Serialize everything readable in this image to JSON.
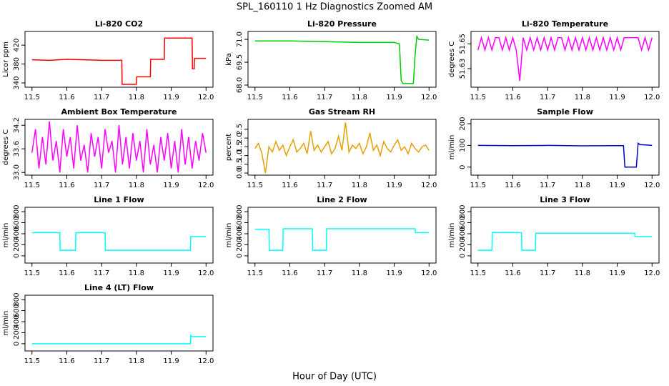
{
  "title": "SPL_160110  1 Hz Diagnostics Zoomed AM",
  "xlabel": "Hour of Day (UTC)",
  "chart_data": [
    {
      "type": "line",
      "title": "Li-820 CO2",
      "ylabel": "Licor ppm",
      "x": [
        11.5,
        11.55,
        11.6,
        11.65,
        11.7,
        11.758,
        11.759,
        11.8,
        11.801,
        11.84,
        11.841,
        11.88,
        11.881,
        11.96,
        11.961,
        11.966,
        11.967,
        12.0
      ],
      "series": [
        {
          "color": "#ff0000",
          "values": [
            389,
            388,
            390,
            389,
            388,
            388,
            337,
            337,
            353,
            353,
            390,
            390,
            435,
            435,
            370,
            370,
            392,
            392
          ]
        }
      ],
      "xlim": [
        11.48,
        12.02
      ],
      "xticks": [
        11.5,
        11.6,
        11.7,
        11.8,
        11.9,
        {
          "value": 12.0,
          "label": "12.0"
        }
      ],
      "ylim": [
        331,
        449
      ],
      "yticks": [
        340,
        380,
        420
      ]
    },
    {
      "type": "line",
      "title": "Li-820 Pressure",
      "ylabel": "kPa",
      "x": [
        11.5,
        11.6,
        11.7,
        11.8,
        11.9,
        11.915,
        11.92,
        11.925,
        11.955,
        11.96,
        11.965,
        11.97,
        12.0
      ],
      "series": [
        {
          "color": "#00cc00",
          "values": [
            70.9,
            70.9,
            70.85,
            70.8,
            70.8,
            70.7,
            68.3,
            68.1,
            68.1,
            70.0,
            71.2,
            71.0,
            70.95
          ]
        }
      ],
      "xlim": [
        11.48,
        12.02
      ],
      "xticks": [
        11.5,
        11.6,
        11.7,
        11.8,
        11.9,
        {
          "value": 12.0,
          "label": "12.0"
        }
      ],
      "ylim": [
        67.86,
        71.52
      ],
      "yticks": [
        {
          "value": 68.0,
          "label": "68.0"
        },
        69.5,
        {
          "value": 71.0,
          "label": "71.0"
        }
      ]
    },
    {
      "type": "line",
      "title": "Li-820 Temperature",
      "ylabel": "degrees C",
      "x": [
        11.5,
        11.51,
        11.52,
        11.53,
        11.54,
        11.55,
        11.56,
        11.57,
        11.58,
        11.59,
        11.6,
        11.61,
        11.62,
        11.63,
        11.64,
        11.65,
        11.66,
        11.67,
        11.68,
        11.69,
        11.7,
        11.71,
        11.72,
        11.73,
        11.74,
        11.75,
        11.76,
        11.77,
        11.78,
        11.79,
        11.8,
        11.81,
        11.82,
        11.83,
        11.84,
        11.85,
        11.86,
        11.87,
        11.88,
        11.89,
        11.9,
        11.91,
        11.92,
        11.93,
        11.94,
        11.95,
        11.96,
        11.97,
        11.98,
        11.99,
        12.0
      ],
      "series": [
        {
          "color": "#ff00ff",
          "values": [
            51.645,
            51.655,
            51.645,
            51.655,
            51.645,
            51.655,
            51.655,
            51.645,
            51.655,
            51.645,
            51.655,
            51.645,
            51.62,
            51.655,
            51.645,
            51.655,
            51.645,
            51.655,
            51.645,
            51.655,
            51.645,
            51.655,
            51.645,
            51.655,
            51.655,
            51.645,
            51.655,
            51.645,
            51.655,
            51.645,
            51.655,
            51.645,
            51.655,
            51.645,
            51.655,
            51.645,
            51.655,
            51.645,
            51.655,
            51.645,
            51.655,
            51.645,
            51.655,
            51.655,
            51.655,
            51.655,
            51.655,
            51.645,
            51.655,
            51.645,
            51.655
          ]
        }
      ],
      "xlim": [
        11.48,
        12.02
      ],
      "xticks": [
        11.5,
        11.6,
        11.7,
        11.8,
        11.9,
        {
          "value": 12.0,
          "label": "12.0"
        }
      ],
      "ylim": [
        51.615,
        51.66
      ],
      "yticks": [
        51.63,
        51.65
      ]
    },
    {
      "type": "line",
      "title": "Ambient Box Temperature",
      "ylabel": "degrees C",
      "x": [
        11.5,
        11.51,
        11.52,
        11.53,
        11.54,
        11.55,
        11.56,
        11.57,
        11.58,
        11.59,
        11.6,
        11.61,
        11.62,
        11.63,
        11.64,
        11.65,
        11.66,
        11.67,
        11.68,
        11.69,
        11.7,
        11.71,
        11.72,
        11.73,
        11.74,
        11.75,
        11.76,
        11.77,
        11.78,
        11.79,
        11.8,
        11.81,
        11.82,
        11.83,
        11.84,
        11.85,
        11.86,
        11.87,
        11.88,
        11.89,
        11.9,
        11.91,
        11.92,
        11.93,
        11.94,
        11.95,
        11.96,
        11.97,
        11.98,
        11.99,
        12.0
      ],
      "series": [
        {
          "color": "#ff00ff",
          "values": [
            33.5,
            34.1,
            33.1,
            33.9,
            33.2,
            34.3,
            33.3,
            33.8,
            33.0,
            34.1,
            33.4,
            33.9,
            33.1,
            34.2,
            33.3,
            33.7,
            33.0,
            34.0,
            33.4,
            33.9,
            33.1,
            34.1,
            33.5,
            33.8,
            33.0,
            34.2,
            33.2,
            33.9,
            33.1,
            34.0,
            33.3,
            33.8,
            33.0,
            34.1,
            33.2,
            33.7,
            33.0,
            33.9,
            33.3,
            34.0,
            33.1,
            33.8,
            33.0,
            34.1,
            33.2,
            33.9,
            33.1,
            33.8,
            33.3,
            34.0,
            33.5
          ]
        }
      ],
      "xlim": [
        11.48,
        12.02
      ],
      "xticks": [
        11.5,
        11.6,
        11.7,
        11.8,
        11.9,
        {
          "value": 12.0,
          "label": "12.0"
        }
      ],
      "ylim": [
        32.93,
        34.35
      ],
      "yticks": [
        {
          "value": 33.0,
          "label": "33.0"
        },
        33.6,
        34.2
      ]
    },
    {
      "type": "line",
      "title": "Gas Stream RH",
      "ylabel": "percent",
      "x": [
        11.5,
        11.51,
        11.52,
        11.53,
        11.54,
        11.55,
        11.56,
        11.57,
        11.58,
        11.59,
        11.6,
        11.61,
        11.62,
        11.63,
        11.64,
        11.65,
        11.66,
        11.67,
        11.68,
        11.69,
        11.7,
        11.71,
        11.72,
        11.73,
        11.74,
        11.75,
        11.76,
        11.77,
        11.78,
        11.79,
        11.8,
        11.81,
        11.82,
        11.83,
        11.84,
        11.85,
        11.86,
        11.87,
        11.88,
        11.89,
        11.9,
        11.91,
        11.92,
        11.93,
        11.94,
        11.95,
        11.96,
        11.97,
        11.98,
        11.99,
        12.0
      ],
      "series": [
        {
          "color": "#e6a000",
          "values": [
            1.4,
            1.7,
            1.1,
            0.0,
            1.5,
            1.2,
            1.8,
            1.3,
            1.6,
            1.0,
            1.5,
            1.9,
            1.2,
            1.4,
            1.7,
            1.1,
            2.4,
            1.3,
            1.6,
            1.2,
            1.5,
            1.8,
            1.1,
            1.4,
            2.1,
            1.3,
            2.9,
            1.2,
            1.6,
            1.4,
            1.7,
            1.1,
            1.5,
            2.3,
            1.3,
            1.6,
            1.0,
            1.8,
            1.4,
            1.2,
            1.6,
            1.9,
            1.3,
            1.5,
            1.1,
            1.7,
            1.4,
            1.2,
            1.5,
            1.6,
            1.3
          ]
        }
      ],
      "xlim": [
        11.48,
        12.02
      ],
      "xticks": [
        11.5,
        11.6,
        11.7,
        11.8,
        11.9,
        {
          "value": 12.0,
          "label": "12.0"
        }
      ],
      "ylim": [
        -0.12,
        3.07
      ],
      "yticks": [
        {
          "value": 0.0,
          "label": "0.0"
        },
        0.5,
        {
          "value": 1.0,
          "label": "1.0"
        },
        1.5,
        {
          "value": 2.0,
          "label": "2.0"
        },
        2.5
      ]
    },
    {
      "type": "line",
      "title": "Sample Flow",
      "ylabel": "ml/min",
      "x": [
        11.5,
        11.6,
        11.7,
        11.8,
        11.9,
        11.918,
        11.922,
        11.955,
        11.96,
        11.965,
        12.0
      ],
      "series": [
        {
          "color": "#0000cc",
          "values": [
            100,
            99,
            100,
            98,
            99,
            99,
            0,
            0,
            110,
            104,
            100
          ]
        }
      ],
      "xlim": [
        11.48,
        12.02
      ],
      "xticks": [
        11.5,
        11.6,
        11.7,
        11.8,
        11.9,
        {
          "value": 12.0,
          "label": "12.0"
        }
      ],
      "ylim": [
        -37,
        220
      ],
      "yticks": [
        0,
        100,
        200
      ]
    },
    {
      "type": "line",
      "title": "Line 1 Flow",
      "ylabel": "ml/min",
      "x": [
        11.5,
        11.58,
        11.581,
        11.625,
        11.626,
        11.71,
        11.711,
        11.955,
        11.956,
        12.0
      ],
      "series": [
        {
          "color": "#00ffff",
          "values": [
            420,
            420,
            100,
            100,
            420,
            420,
            100,
            100,
            350,
            350
          ]
        }
      ],
      "xlim": [
        11.48,
        12.02
      ],
      "xticks": [
        11.5,
        11.6,
        11.7,
        11.8,
        11.9,
        {
          "value": 12.0,
          "label": "12.0"
        }
      ],
      "ylim": [
        -131,
        879
      ],
      "yticks": [
        0,
        200,
        400,
        600,
        800
      ]
    },
    {
      "type": "line",
      "title": "Line 2 Flow",
      "ylabel": "ml/min",
      "x": [
        11.5,
        11.54,
        11.541,
        11.58,
        11.581,
        11.665,
        11.666,
        11.705,
        11.706,
        11.96,
        11.961,
        12.0
      ],
      "series": [
        {
          "color": "#00ffff",
          "values": [
            480,
            480,
            100,
            100,
            490,
            490,
            100,
            100,
            490,
            490,
            420,
            420
          ]
        }
      ],
      "xlim": [
        11.48,
        12.02
      ],
      "xticks": [
        11.5,
        11.6,
        11.7,
        11.8,
        11.9,
        {
          "value": 12.0,
          "label": "12.0"
        }
      ],
      "ylim": [
        -131,
        879
      ],
      "yticks": [
        0,
        200,
        400,
        600,
        800
      ]
    },
    {
      "type": "line",
      "title": "Line 3 Flow",
      "ylabel": "ml/min",
      "x": [
        11.5,
        11.54,
        11.541,
        11.625,
        11.626,
        11.665,
        11.666,
        11.95,
        11.951,
        12.0
      ],
      "series": [
        {
          "color": "#00ffff",
          "values": [
            100,
            100,
            420,
            420,
            100,
            100,
            410,
            410,
            350,
            350
          ]
        }
      ],
      "xlim": [
        11.48,
        12.02
      ],
      "xticks": [
        11.5,
        11.6,
        11.7,
        11.8,
        11.9,
        {
          "value": 12.0,
          "label": "12.0"
        }
      ],
      "ylim": [
        -131,
        879
      ],
      "yticks": [
        0,
        200,
        400,
        600,
        800
      ]
    },
    {
      "type": "line",
      "title": "Line 4 (LT) Flow",
      "ylabel": "ml/min",
      "x": [
        11.5,
        11.7,
        11.955,
        11.956,
        11.96,
        12.0
      ],
      "series": [
        {
          "color": "#00ffff",
          "values": [
            0,
            0,
            0,
            150,
            130,
            130
          ]
        }
      ],
      "xlim": [
        11.48,
        12.02
      ],
      "xticks": [
        11.5,
        11.6,
        11.7,
        11.8,
        11.9,
        {
          "value": 12.0,
          "label": "12.0"
        }
      ],
      "ylim": [
        -131,
        879
      ],
      "yticks": [
        0,
        200,
        400,
        600,
        800
      ]
    }
  ]
}
